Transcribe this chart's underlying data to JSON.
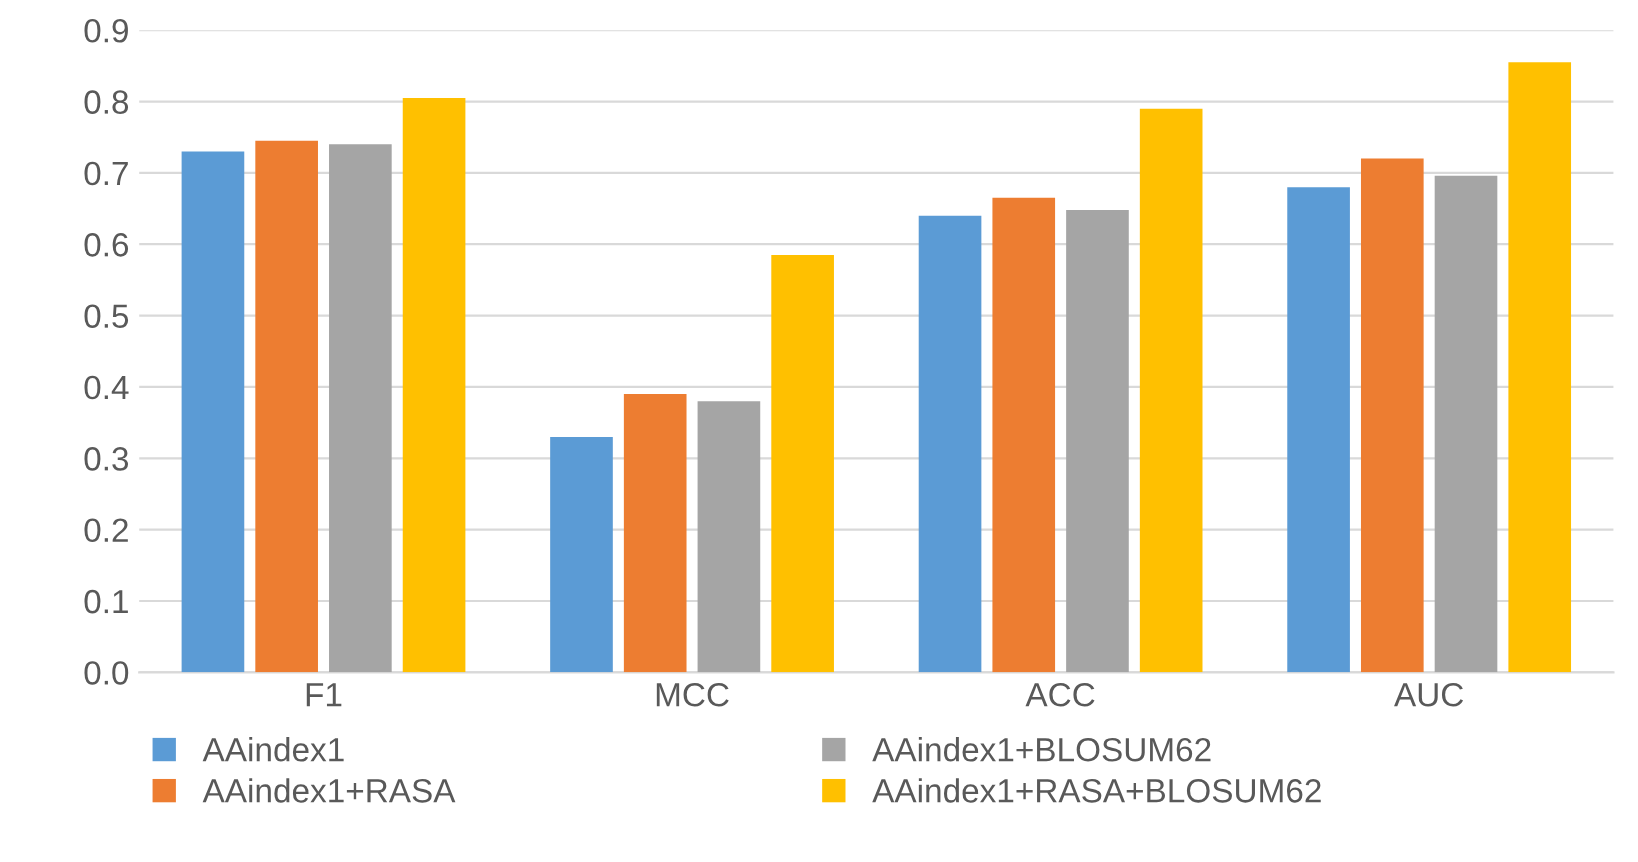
{
  "chart_data": {
    "type": "bar",
    "categories": [
      "F1",
      "MCC",
      "ACC",
      "AUC"
    ],
    "series": [
      {
        "name": "AAindex1",
        "color": "#5b9bd5",
        "values": [
          0.73,
          0.33,
          0.64,
          0.68
        ]
      },
      {
        "name": "AAindex1+RASA",
        "color": "#ed7d31",
        "values": [
          0.745,
          0.39,
          0.665,
          0.72
        ]
      },
      {
        "name": "AAindex1+BLOSUM62",
        "color": "#a5a5a5",
        "values": [
          0.74,
          0.38,
          0.648,
          0.696
        ]
      },
      {
        "name": "AAindex1+RASA+BLOSUM62",
        "color": "#ffc000",
        "values": [
          0.805,
          0.585,
          0.79,
          0.855
        ]
      }
    ],
    "ylim": [
      0,
      0.9
    ],
    "yticks": [
      {
        "value": 0,
        "label": "0.0"
      },
      0.1,
      0.2,
      0.3,
      0.4,
      0.5,
      0.6,
      0.7,
      0.8,
      0.9
    ],
    "grid": "y",
    "legend": "bottom"
  }
}
